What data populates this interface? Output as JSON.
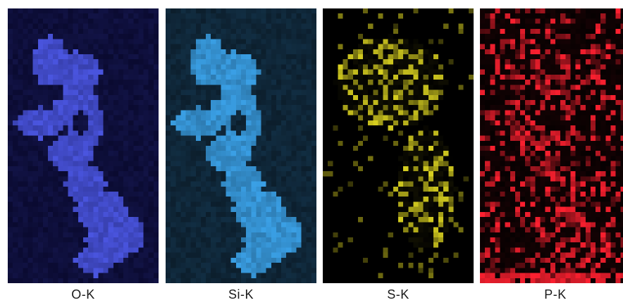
{
  "panels": [
    {
      "key": "o",
      "label": "O-K",
      "base_color": "#0a0a30",
      "signal_color": "#4a55e0",
      "style": "blob"
    },
    {
      "key": "si",
      "label": "Si-K",
      "base_color": "#0c1e2c",
      "signal_color": "#3aa0e6",
      "style": "blob"
    },
    {
      "key": "s",
      "label": "S-K",
      "base_color": "#000000",
      "signal_color": "#d8d020",
      "style": "sparse"
    },
    {
      "key": "p",
      "label": "P-K",
      "base_color": "#000000",
      "signal_color": "#ff2030",
      "style": "dense"
    }
  ]
}
